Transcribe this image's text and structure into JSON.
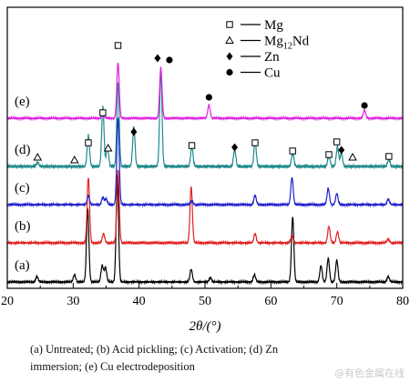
{
  "chart_data": {
    "type": "line",
    "xlabel": "2θ/(°)",
    "xlim": [
      20,
      80
    ],
    "x_ticks": [
      "20",
      "30",
      "40",
      "50",
      "60",
      "70",
      "80"
    ],
    "grid": false,
    "legend_position": "top-right",
    "legend": [
      {
        "symbol": "open-square",
        "name": "Mg"
      },
      {
        "symbol": "open-triangle",
        "name": "Mg12Nd",
        "name_base": "Mg",
        "name_sub": "12",
        "name_tail": "Nd"
      },
      {
        "symbol": "filled-diamond",
        "name": "Zn"
      },
      {
        "symbol": "filled-circle",
        "name": "Cu"
      }
    ],
    "series": [
      {
        "name": "(a)",
        "color": "#000000",
        "baseline": 0,
        "peaks": [
          [
            24.5,
            6
          ],
          [
            30.2,
            8
          ],
          [
            32.2,
            80
          ],
          [
            34.4,
            18
          ],
          [
            34.9,
            16
          ],
          [
            36.7,
            118
          ],
          [
            47.9,
            14
          ],
          [
            50.8,
            5
          ],
          [
            57.5,
            8
          ],
          [
            63.3,
            72
          ],
          [
            67.6,
            18
          ],
          [
            68.7,
            26
          ],
          [
            70.0,
            24
          ],
          [
            77.8,
            6
          ]
        ]
      },
      {
        "name": "(b)",
        "color": "#e02020",
        "baseline": 0,
        "peaks": [
          [
            32.3,
            72
          ],
          [
            34.6,
            10
          ],
          [
            36.8,
            80
          ],
          [
            47.9,
            62
          ],
          [
            57.6,
            10
          ],
          [
            63.2,
            8
          ],
          [
            68.8,
            18
          ],
          [
            70.1,
            12
          ],
          [
            77.8,
            4
          ]
        ]
      },
      {
        "name": "(c)",
        "color": "#1f1fd0",
        "baseline": 0,
        "peaks": [
          [
            32.3,
            10
          ],
          [
            34.5,
            8
          ],
          [
            35.0,
            6
          ],
          [
            36.8,
            96
          ],
          [
            48.0,
            4
          ],
          [
            57.6,
            10
          ],
          [
            63.2,
            30
          ],
          [
            68.7,
            18
          ],
          [
            70.0,
            12
          ],
          [
            77.8,
            6
          ]
        ]
      },
      {
        "name": "(d)",
        "color": "#1f8a8a",
        "baseline": 0,
        "peaks": [
          [
            24.6,
            3
          ],
          [
            32.3,
            22
          ],
          [
            34.5,
            42
          ],
          [
            35.2,
            14
          ],
          [
            36.8,
            60
          ],
          [
            39.2,
            28
          ],
          [
            43.3,
            68
          ],
          [
            48.0,
            14
          ],
          [
            54.5,
            12
          ],
          [
            57.6,
            18
          ],
          [
            63.3,
            10
          ],
          [
            68.8,
            8
          ],
          [
            70.1,
            14
          ],
          [
            70.7,
            9
          ],
          [
            77.9,
            5
          ]
        ]
      },
      {
        "name": "(e)",
        "color": "#e020e0",
        "baseline": 0,
        "peaks": [
          [
            34.5,
            5
          ],
          [
            36.8,
            68
          ],
          [
            43.3,
            62
          ],
          [
            50.6,
            16
          ],
          [
            74.2,
            10
          ]
        ]
      }
    ],
    "marker_annotations": [
      {
        "trace": "(e)",
        "x": 34.5,
        "symbol": "open-square"
      },
      {
        "trace": "(e)",
        "x": 36.8,
        "symbol": "open-square"
      },
      {
        "trace": "(e)",
        "x": 42.8,
        "symbol": "filled-diamond"
      },
      {
        "trace": "(e)",
        "x": 44.6,
        "symbol": "filled-circle"
      },
      {
        "trace": "(e)",
        "x": 50.6,
        "symbol": "filled-circle"
      },
      {
        "trace": "(e)",
        "x": 74.2,
        "symbol": "filled-circle"
      },
      {
        "trace": "(d)",
        "x": 24.6,
        "symbol": "open-triangle"
      },
      {
        "trace": "(d)",
        "x": 30.2,
        "symbol": "open-triangle"
      },
      {
        "trace": "(d)",
        "x": 32.3,
        "symbol": "open-square"
      },
      {
        "trace": "(d)",
        "x": 35.3,
        "symbol": "open-triangle"
      },
      {
        "trace": "(d)",
        "x": 39.2,
        "symbol": "filled-diamond"
      },
      {
        "trace": "(d)",
        "x": 48.0,
        "symbol": "open-square"
      },
      {
        "trace": "(d)",
        "x": 54.5,
        "symbol": "filled-diamond"
      },
      {
        "trace": "(d)",
        "x": 57.6,
        "symbol": "open-square"
      },
      {
        "trace": "(d)",
        "x": 63.3,
        "symbol": "open-square"
      },
      {
        "trace": "(d)",
        "x": 68.8,
        "symbol": "open-square"
      },
      {
        "trace": "(d)",
        "x": 70.0,
        "symbol": "open-square"
      },
      {
        "trace": "(d)",
        "x": 70.7,
        "symbol": "filled-diamond"
      },
      {
        "trace": "(d)",
        "x": 72.4,
        "symbol": "open-triangle"
      },
      {
        "trace": "(d)",
        "x": 77.9,
        "symbol": "open-square"
      }
    ]
  },
  "caption": {
    "line1": "(a)  Untreated;  (b)  Acid  pickling;  (c)  Activation;  (d)  Zn",
    "line2": "immersion; (e) Cu electrodeposition"
  },
  "watermark": "@有色金属在线"
}
